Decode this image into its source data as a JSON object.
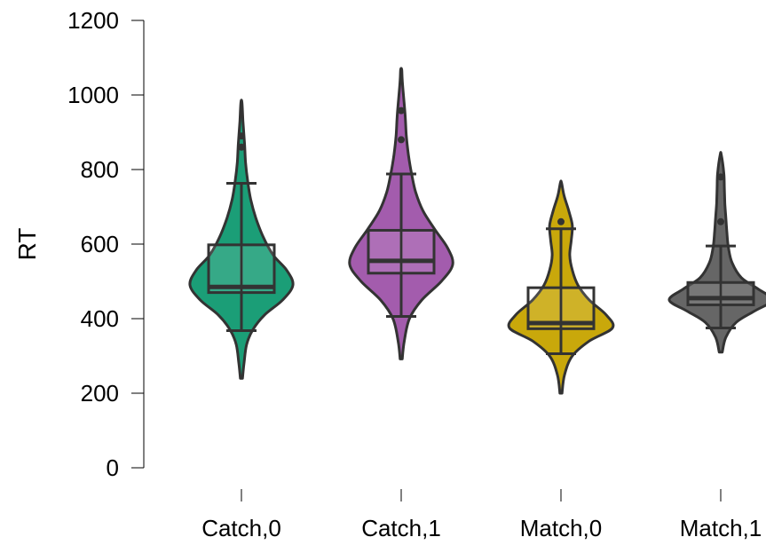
{
  "chart_data": {
    "type": "violin",
    "ylabel": "RT",
    "xlabel": "",
    "ylim": [
      0,
      1200
    ],
    "yticks": [
      "0",
      "200",
      "400",
      "600",
      "800",
      "1000",
      "1200"
    ],
    "grid": false,
    "legend": "none",
    "categories": [
      "Catch,0",
      "Catch,1",
      "Match,0",
      "Match,1"
    ],
    "series": [
      {
        "category": "Catch,0",
        "color": "#1b9e77",
        "min": 240,
        "max": 980,
        "q1": 470,
        "median": 485,
        "q3": 598,
        "whisker_low": 368,
        "whisker_high": 763,
        "outliers": [
          860,
          890
        ],
        "density": [
          [
            240,
            0.02
          ],
          [
            280,
            0.05
          ],
          [
            330,
            0.1
          ],
          [
            370,
            0.22
          ],
          [
            410,
            0.45
          ],
          [
            450,
            0.8
          ],
          [
            490,
            1.0
          ],
          [
            530,
            0.88
          ],
          [
            570,
            0.62
          ],
          [
            620,
            0.42
          ],
          [
            670,
            0.28
          ],
          [
            720,
            0.18
          ],
          [
            770,
            0.12
          ],
          [
            820,
            0.08
          ],
          [
            870,
            0.06
          ],
          [
            930,
            0.03
          ],
          [
            980,
            0.01
          ]
        ]
      },
      {
        "category": "Catch,1",
        "color": "#a35cad",
        "min": 292,
        "max": 1068,
        "q1": 522,
        "median": 555,
        "q3": 637,
        "whisker_low": 406,
        "whisker_high": 788,
        "outliers": [
          880,
          958
        ],
        "density": [
          [
            292,
            0.02
          ],
          [
            340,
            0.06
          ],
          [
            400,
            0.16
          ],
          [
            450,
            0.4
          ],
          [
            500,
            0.78
          ],
          [
            545,
            1.0
          ],
          [
            590,
            0.9
          ],
          [
            640,
            0.65
          ],
          [
            690,
            0.42
          ],
          [
            740,
            0.28
          ],
          [
            790,
            0.2
          ],
          [
            840,
            0.14
          ],
          [
            890,
            0.1
          ],
          [
            940,
            0.08
          ],
          [
            990,
            0.05
          ],
          [
            1040,
            0.02
          ],
          [
            1068,
            0.01
          ]
        ]
      },
      {
        "category": "Match,0",
        "color": "#c9a80b",
        "min": 200,
        "max": 765,
        "q1": 373,
        "median": 388,
        "q3": 483,
        "whisker_low": 306,
        "whisker_high": 641,
        "outliers": [
          660
        ],
        "density": [
          [
            200,
            0.02
          ],
          [
            250,
            0.07
          ],
          [
            300,
            0.22
          ],
          [
            340,
            0.55
          ],
          [
            375,
            1.0
          ],
          [
            410,
            0.88
          ],
          [
            450,
            0.55
          ],
          [
            490,
            0.33
          ],
          [
            530,
            0.22
          ],
          [
            570,
            0.17
          ],
          [
            610,
            0.2
          ],
          [
            650,
            0.22
          ],
          [
            690,
            0.15
          ],
          [
            730,
            0.06
          ],
          [
            765,
            0.01
          ]
        ]
      },
      {
        "category": "Match,1",
        "color": "#666666",
        "min": 310,
        "max": 840,
        "q1": 437,
        "median": 455,
        "q3": 497,
        "whisker_low": 375,
        "whisker_high": 595,
        "outliers": [
          660,
          780
        ],
        "density": [
          [
            310,
            0.03
          ],
          [
            350,
            0.1
          ],
          [
            390,
            0.3
          ],
          [
            420,
            0.65
          ],
          [
            450,
            1.0
          ],
          [
            480,
            0.72
          ],
          [
            510,
            0.4
          ],
          [
            550,
            0.22
          ],
          [
            590,
            0.15
          ],
          [
            630,
            0.12
          ],
          [
            670,
            0.1
          ],
          [
            710,
            0.08
          ],
          [
            750,
            0.07
          ],
          [
            790,
            0.06
          ],
          [
            840,
            0.01
          ]
        ]
      }
    ]
  }
}
